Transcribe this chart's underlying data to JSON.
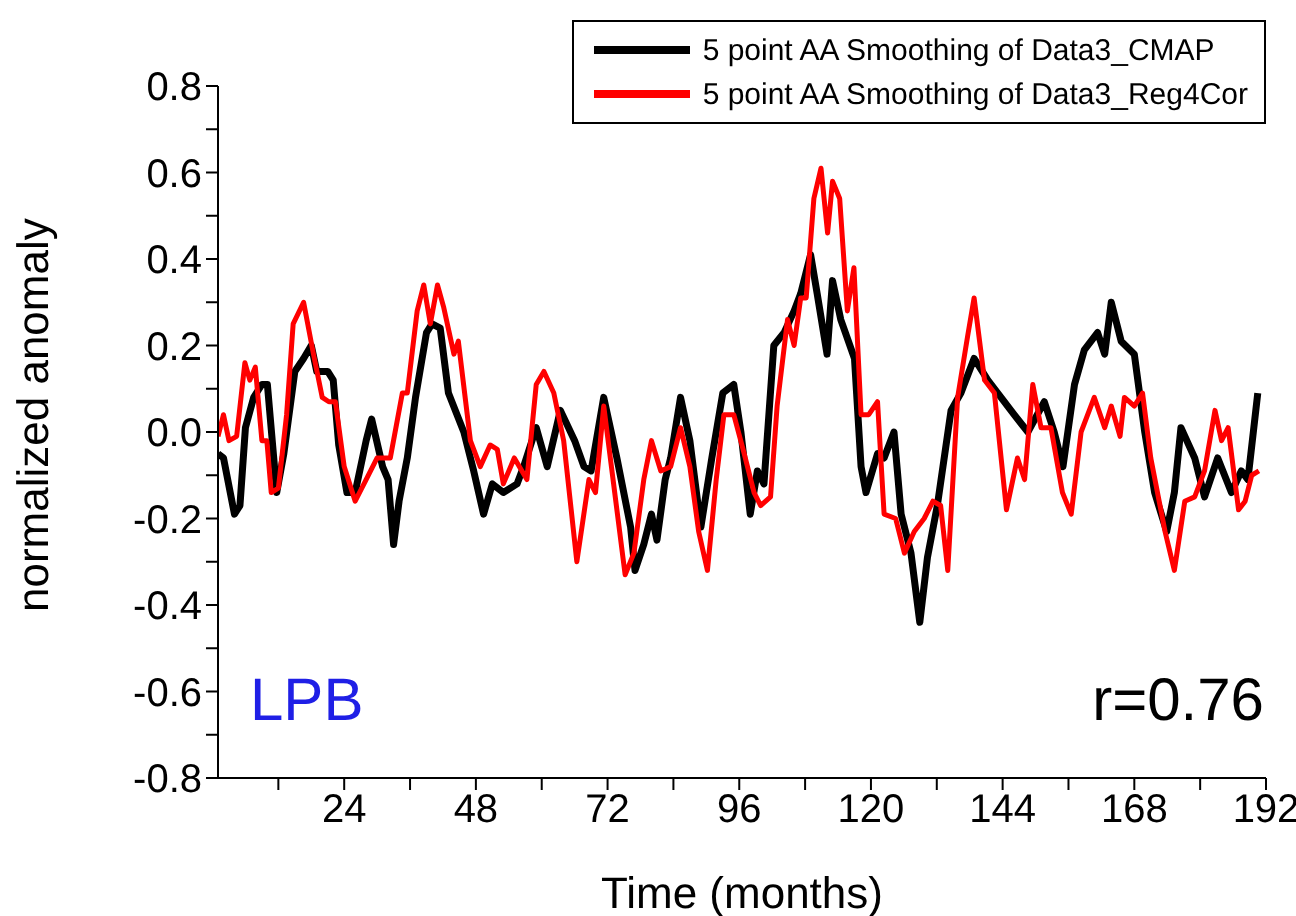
{
  "chart_data": {
    "type": "line",
    "xlabel": "Time (months)",
    "ylabel": "normalized anomaly",
    "legend": "top right",
    "marker": "none",
    "grid": false,
    "xlim": [
      1,
      192
    ],
    "xticks": [
      {
        "value": 12,
        "label": null
      },
      24,
      {
        "value": 36,
        "label": null
      },
      48,
      {
        "value": 60,
        "label": null
      },
      72,
      {
        "value": 84,
        "label": null
      },
      96,
      {
        "value": 108,
        "label": null
      },
      120,
      {
        "value": 132,
        "label": null
      },
      144,
      {
        "value": 156,
        "label": null
      },
      168,
      {
        "value": 180,
        "label": null
      },
      192
    ],
    "ylim": [
      -0.8,
      0.8
    ],
    "yticks": [
      -0.8,
      {
        "value": -0.7,
        "label": null
      },
      -0.6,
      {
        "value": -0.5,
        "label": null
      },
      -0.4,
      {
        "value": -0.3,
        "label": null
      },
      -0.2,
      {
        "value": -0.1,
        "label": null
      },
      {
        "value": 0,
        "label": "0.0"
      },
      {
        "value": 0.1,
        "label": null
      },
      0.2,
      {
        "value": 0.3,
        "label": null
      },
      0.4,
      {
        "value": 0.5,
        "label": null
      },
      0.6,
      {
        "value": 0.7,
        "label": null
      },
      0.8
    ],
    "annotations": [
      "LPB",
      "r=0.76"
    ],
    "series": [
      {
        "name": "5 point AA Smoothing of Data3_CMAP",
        "color": "#000000",
        "x": [
          1,
          2,
          4,
          5,
          6,
          7.5,
          9,
          10,
          11.7,
          13,
          15,
          16.6,
          18,
          19,
          21,
          22,
          23,
          24.5,
          26,
          28,
          29,
          31,
          32,
          33,
          34,
          35.5,
          37,
          39,
          40,
          41.5,
          43,
          45.8,
          47.6,
          49.4,
          51,
          53,
          55.5,
          56.7,
          59,
          61,
          63.4,
          66,
          67.7,
          69,
          71.3,
          73.7,
          76.2,
          77,
          78.6,
          80,
          81,
          82.5,
          83.5,
          85.3,
          87,
          89,
          91,
          93,
          95,
          96.3,
          98,
          99.3,
          100.5,
          102.3,
          104.2,
          106,
          107.2,
          109,
          110.2,
          112,
          113,
          114.5,
          117,
          118.2,
          119.1,
          121.2,
          122.4,
          124.2,
          125.5,
          127.3,
          128.9,
          130.3,
          132.1,
          134.6,
          136.4,
          138.8,
          141.3,
          143.7,
          146.1,
          148.6,
          151.6,
          153.4,
          155,
          157.1,
          158.9,
          161.3,
          162.6,
          163.8,
          165.6,
          168,
          169.9,
          171.7,
          173.9,
          175.3,
          176.5,
          179,
          180.8,
          183.2,
          185.7,
          187.5,
          188.7,
          190.5
        ],
        "values": [
          -0.05,
          -0.06,
          -0.19,
          -0.17,
          0.01,
          0.08,
          0.11,
          0.11,
          -0.14,
          -0.05,
          0.14,
          0.17,
          0.2,
          0.14,
          0.14,
          0.12,
          -0.03,
          -0.14,
          -0.14,
          -0.02,
          0.03,
          -0.08,
          -0.11,
          -0.26,
          -0.16,
          -0.06,
          0.08,
          0.23,
          0.25,
          0.24,
          0.09,
          0,
          -0.09,
          -0.19,
          -0.12,
          -0.14,
          -0.12,
          -0.08,
          0.01,
          -0.08,
          0.05,
          -0.02,
          -0.08,
          -0.09,
          0.08,
          -0.06,
          -0.22,
          -0.32,
          -0.26,
          -0.19,
          -0.25,
          -0.11,
          -0.06,
          0.08,
          -0.02,
          -0.22,
          -0.06,
          0.09,
          0.11,
          0,
          -0.19,
          -0.09,
          -0.12,
          0.2,
          0.23,
          0.28,
          0.32,
          0.41,
          0.32,
          0.18,
          0.35,
          0.26,
          0.17,
          -0.08,
          -0.14,
          -0.05,
          -0.06,
          0,
          -0.19,
          -0.28,
          -0.44,
          -0.29,
          -0.17,
          0.05,
          0.09,
          0.17,
          0.12,
          0.08,
          0.04,
          0,
          0.07,
          0,
          -0.08,
          0.11,
          0.19,
          0.23,
          0.18,
          0.3,
          0.21,
          0.18,
          0,
          -0.14,
          -0.23,
          -0.14,
          0.01,
          -0.06,
          -0.15,
          -0.06,
          -0.14,
          -0.09,
          -0.11,
          0.09
        ]
      },
      {
        "name": "5 point AA Smoothing of Data3_Reg4Cor",
        "color": "#ff0000",
        "x": [
          1,
          2,
          3,
          4.4,
          5.9,
          6.8,
          7.8,
          9,
          9.9,
          10.7,
          12,
          13.5,
          14.7,
          16.6,
          18.4,
          20,
          21.2,
          22.4,
          24,
          26,
          28,
          30,
          31,
          32.4,
          34.6,
          35.5,
          37.3,
          38.5,
          39.7,
          41,
          42.1,
          44,
          44.8,
          47,
          48.8,
          50.6,
          51.9,
          53,
          55,
          57.3,
          59,
          60.4,
          62.2,
          64,
          66.4,
          68.6,
          69.8,
          71.3,
          73.1,
          75.2,
          76.8,
          78.6,
          80,
          81.7,
          83.5,
          85.3,
          87,
          88.6,
          90.2,
          91.8,
          93.2,
          95,
          96.9,
          98.7,
          99.9,
          101.7,
          102.9,
          104.8,
          106,
          107.2,
          108.2,
          109.6,
          110.9,
          112.1,
          113,
          114.3,
          115.7,
          116.9,
          118.2,
          119.6,
          121.2,
          122.4,
          124.5,
          126.1,
          127.9,
          129.7,
          131.3,
          132.7,
          134,
          135.8,
          137.6,
          138.8,
          140.7,
          142.5,
          144.7,
          146.7,
          148,
          149.5,
          151,
          152.8,
          154.9,
          156.5,
          158.3,
          160.7,
          162.6,
          163.8,
          165.4,
          166.2,
          168,
          169.5,
          171,
          173.6,
          175.3,
          177.2,
          179,
          180.8,
          182.7,
          183.9,
          185.1,
          187,
          188.2,
          189.4,
          190.7
        ],
        "values": [
          -0.01,
          0.04,
          -0.02,
          -0.01,
          0.16,
          0.12,
          0.15,
          -0.02,
          -0.02,
          -0.14,
          -0.13,
          0.04,
          0.25,
          0.3,
          0.18,
          0.08,
          0.07,
          0.07,
          -0.08,
          -0.16,
          -0.11,
          -0.06,
          -0.06,
          -0.06,
          0.09,
          0.09,
          0.28,
          0.34,
          0.25,
          0.34,
          0.29,
          0.18,
          0.21,
          -0.02,
          -0.08,
          -0.03,
          -0.04,
          -0.12,
          -0.06,
          -0.11,
          0.11,
          0.14,
          0.09,
          -0.02,
          -0.3,
          -0.11,
          -0.14,
          0.06,
          -0.12,
          -0.33,
          -0.28,
          -0.11,
          -0.02,
          -0.09,
          -0.08,
          0.01,
          -0.08,
          -0.23,
          -0.32,
          -0.11,
          0.04,
          0.04,
          -0.05,
          -0.14,
          -0.17,
          -0.15,
          0.06,
          0.26,
          0.2,
          0.31,
          0.31,
          0.54,
          0.61,
          0.46,
          0.58,
          0.54,
          0.28,
          0.38,
          0.04,
          0.04,
          0.07,
          -0.19,
          -0.2,
          -0.28,
          -0.23,
          -0.2,
          -0.16,
          -0.17,
          -0.32,
          0.08,
          0.22,
          0.31,
          0.12,
          0.09,
          -0.18,
          -0.06,
          -0.11,
          0.11,
          0.01,
          0.01,
          -0.14,
          -0.19,
          0,
          0.08,
          0.01,
          0.06,
          -0.01,
          0.08,
          0.06,
          0.09,
          -0.06,
          -0.23,
          -0.32,
          -0.16,
          -0.15,
          -0.09,
          0.05,
          -0.02,
          0.01,
          -0.18,
          -0.16,
          -0.1,
          -0.09
        ]
      }
    ]
  }
}
